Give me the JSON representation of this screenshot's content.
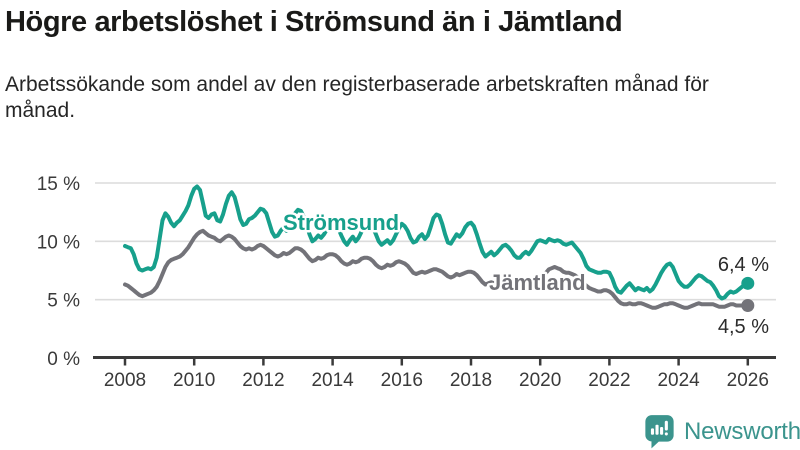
{
  "header": {
    "title": "Högre arbetslöshet i Strömsund än i Jämtland",
    "subtitle": "Arbetssökande som andel av den registerbaserade arbetskraften månad för månad."
  },
  "footer": {
    "brand": "Newsworthy",
    "brand_color": "#3b948d"
  },
  "chart_data": {
    "type": "line",
    "title": "Högre arbetslöshet i Strömsund än i Jämtland",
    "unit": "%",
    "frequency": "monthly",
    "x_start": "2008-01",
    "x_end": "2026-01",
    "ylim": [
      0,
      15.5
    ],
    "grid": "horizontal",
    "legend_position": "inline-labels",
    "x_ticks": [
      2008,
      2010,
      2012,
      2014,
      2016,
      2018,
      2020,
      2022,
      2024,
      2026
    ],
    "y_ticks": [
      {
        "v": 0,
        "label": "0 %"
      },
      {
        "v": 5,
        "label": "5 %"
      },
      {
        "v": 10,
        "label": "10 %"
      },
      {
        "v": 15,
        "label": "15 %"
      }
    ],
    "series": [
      {
        "name": "Strömsund",
        "color": "#17a08c",
        "end_label": "6,4 %",
        "end_value": 6.4,
        "values": [
          9.6,
          9.5,
          9.4,
          8.9,
          8.1,
          7.6,
          7.5,
          7.6,
          7.7,
          7.6,
          7.8,
          8.6,
          10.2,
          11.8,
          12.4,
          12.1,
          11.6,
          11.3,
          11.6,
          11.8,
          12.2,
          12.6,
          13.1,
          13.9,
          14.5,
          14.7,
          14.4,
          13.3,
          12.2,
          12.0,
          12.3,
          12.4,
          11.8,
          11.7,
          12.3,
          13.2,
          13.9,
          14.2,
          13.8,
          12.9,
          11.9,
          11.4,
          11.5,
          11.9,
          12.0,
          12.2,
          12.5,
          12.8,
          12.7,
          12.4,
          11.6,
          10.8,
          10.4,
          10.5,
          10.9,
          11.2,
          10.9,
          11.1,
          11.7,
          12.4,
          12.7,
          12.6,
          12.1,
          11.4,
          10.6,
          10.0,
          10.2,
          10.5,
          10.3,
          10.6,
          11.0,
          11.4,
          11.6,
          11.5,
          11.1,
          10.5,
          10.0,
          9.7,
          10.1,
          10.4,
          10.0,
          10.3,
          10.8,
          11.4,
          11.7,
          11.6,
          11.2,
          10.6,
          10.0,
          9.7,
          9.9,
          10.1,
          9.8,
          10.1,
          10.6,
          11.1,
          11.5,
          11.3,
          10.9,
          10.3,
          9.9,
          10.0,
          10.4,
          10.6,
          10.2,
          10.5,
          11.2,
          12.0,
          12.3,
          12.2,
          11.5,
          10.6,
          9.9,
          9.8,
          10.2,
          10.6,
          10.4,
          10.7,
          11.2,
          11.5,
          11.6,
          11.3,
          10.6,
          9.8,
          9.1,
          8.7,
          8.9,
          9.1,
          8.8,
          9.0,
          9.3,
          9.6,
          9.7,
          9.5,
          9.2,
          8.8,
          8.6,
          8.6,
          8.9,
          9.1,
          8.9,
          9.2,
          9.6,
          10.0,
          10.1,
          10.0,
          9.9,
          10.2,
          10.1,
          10.0,
          10.1,
          10.0,
          9.8,
          9.7,
          9.8,
          9.9,
          9.6,
          9.3,
          9.0,
          8.5,
          7.9,
          7.6,
          7.5,
          7.4,
          7.3,
          7.3,
          7.4,
          7.4,
          7.3,
          6.8,
          6.1,
          5.7,
          5.6,
          5.9,
          6.2,
          6.4,
          6.1,
          5.8,
          6.0,
          5.9,
          5.8,
          6.0,
          5.7,
          5.9,
          6.3,
          6.8,
          7.3,
          7.7,
          8.0,
          8.1,
          7.8,
          7.2,
          6.6,
          6.3,
          6.1,
          6.1,
          6.3,
          6.6,
          6.9,
          7.1,
          7.0,
          6.8,
          6.6,
          6.5,
          6.2,
          5.8,
          5.3,
          5.1,
          5.2,
          5.5,
          5.7,
          5.6,
          5.7,
          5.9,
          6.1,
          6.3,
          6.4
        ]
      },
      {
        "name": "Jämtland",
        "color": "#737379",
        "end_label": "4,5 %",
        "end_value": 4.5,
        "values": [
          6.3,
          6.2,
          6.0,
          5.8,
          5.6,
          5.4,
          5.3,
          5.4,
          5.5,
          5.6,
          5.8,
          6.1,
          6.6,
          7.2,
          7.8,
          8.2,
          8.4,
          8.5,
          8.6,
          8.7,
          8.9,
          9.2,
          9.5,
          9.9,
          10.3,
          10.6,
          10.8,
          10.9,
          10.7,
          10.5,
          10.4,
          10.3,
          10.1,
          10.0,
          10.2,
          10.4,
          10.5,
          10.4,
          10.2,
          9.9,
          9.6,
          9.4,
          9.3,
          9.4,
          9.3,
          9.4,
          9.6,
          9.7,
          9.6,
          9.4,
          9.2,
          9.0,
          8.8,
          8.7,
          8.8,
          9.0,
          8.9,
          9.0,
          9.2,
          9.4,
          9.4,
          9.3,
          9.1,
          8.8,
          8.5,
          8.3,
          8.4,
          8.6,
          8.5,
          8.6,
          8.8,
          8.9,
          8.9,
          8.8,
          8.6,
          8.3,
          8.1,
          8.0,
          8.1,
          8.3,
          8.2,
          8.3,
          8.5,
          8.6,
          8.6,
          8.5,
          8.3,
          8.0,
          7.8,
          7.7,
          7.8,
          8.0,
          7.9,
          8.0,
          8.2,
          8.3,
          8.2,
          8.1,
          7.9,
          7.6,
          7.3,
          7.2,
          7.3,
          7.4,
          7.3,
          7.4,
          7.5,
          7.6,
          7.6,
          7.5,
          7.4,
          7.2,
          7.0,
          6.9,
          7.0,
          7.2,
          7.1,
          7.2,
          7.3,
          7.4,
          7.4,
          7.3,
          7.1,
          6.8,
          6.5,
          6.3,
          6.4,
          6.5,
          6.4,
          6.5,
          6.6,
          6.7,
          6.8,
          6.7,
          6.6,
          6.4,
          6.3,
          6.2,
          6.3,
          6.5,
          6.4,
          6.5,
          6.7,
          6.9,
          7.0,
          7.1,
          7.3,
          7.6,
          7.7,
          7.8,
          7.7,
          7.6,
          7.4,
          7.3,
          7.3,
          7.2,
          7.1,
          6.9,
          6.7,
          6.4,
          6.2,
          6.0,
          5.9,
          5.8,
          5.7,
          5.7,
          5.8,
          5.8,
          5.7,
          5.5,
          5.2,
          4.9,
          4.7,
          4.6,
          4.6,
          4.7,
          4.6,
          4.6,
          4.7,
          4.7,
          4.6,
          4.5,
          4.4,
          4.3,
          4.3,
          4.4,
          4.5,
          4.6,
          4.6,
          4.7,
          4.7,
          4.6,
          4.5,
          4.4,
          4.3,
          4.3,
          4.4,
          4.5,
          4.6,
          4.7,
          4.6,
          4.6,
          4.6,
          4.6,
          4.6,
          4.5,
          4.4,
          4.4,
          4.4,
          4.5,
          4.6,
          4.6,
          4.5,
          4.5,
          4.5,
          4.5,
          4.5
        ]
      }
    ]
  }
}
